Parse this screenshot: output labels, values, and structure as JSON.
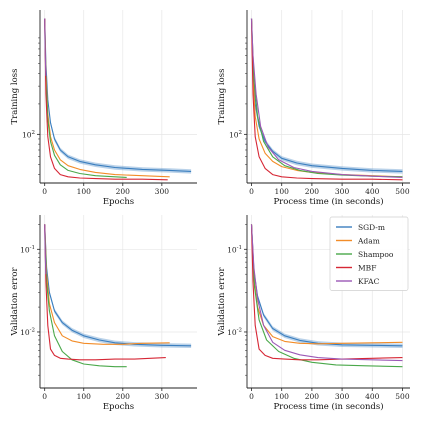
{
  "chart_data": [
    {
      "type": "line",
      "ylabel": "Training loss",
      "xlabel": "Epochs",
      "yscale": "log",
      "ylim": [
        33,
        1700
      ],
      "xlim": [
        -12,
        390
      ],
      "xticks": [
        0,
        100,
        200,
        300
      ],
      "yticks": [
        {
          "v": 100,
          "label": "10^2"
        }
      ],
      "grid": true,
      "legend": false,
      "series": [
        {
          "name": "SGD-m",
          "color": "#3a7ebf",
          "band": true,
          "x": [
            0,
            3,
            8,
            15,
            25,
            40,
            60,
            90,
            130,
            180,
            250,
            320,
            375
          ],
          "y": [
            1400,
            500,
            220,
            130,
            90,
            70,
            60,
            54,
            50,
            47,
            45,
            44,
            43
          ]
        },
        {
          "name": "Adam",
          "color": "#f28c28",
          "band": false,
          "x": [
            0,
            3,
            8,
            15,
            25,
            40,
            60,
            90,
            130,
            180,
            250,
            320
          ],
          "y": [
            1400,
            400,
            160,
            95,
            70,
            56,
            49,
            45,
            42,
            40,
            39,
            38
          ]
        },
        {
          "name": "Shampoo",
          "color": "#4aa84a",
          "band": false,
          "x": [
            0,
            3,
            8,
            15,
            25,
            40,
            60,
            90,
            130,
            180,
            210
          ],
          "y": [
            1400,
            350,
            140,
            85,
            62,
            50,
            44,
            41,
            39,
            38,
            37.5
          ]
        },
        {
          "name": "MBF",
          "color": "#d62735",
          "band": false,
          "x": [
            0,
            3,
            8,
            15,
            25,
            40,
            60,
            90,
            130,
            180,
            250,
            315
          ],
          "y": [
            1400,
            250,
            95,
            60,
            46,
            40,
            38,
            37,
            36.5,
            36,
            36,
            35.5
          ]
        },
        {
          "name": "KFAC",
          "color": "#9b59b6",
          "band": false,
          "x": [
            0,
            1,
            3
          ],
          "y": [
            1400,
            700,
            380
          ]
        }
      ]
    },
    {
      "type": "line",
      "ylabel": "Training loss",
      "xlabel": "Process time (in seconds)",
      "yscale": "log",
      "ylim": [
        33,
        1700
      ],
      "xlim": [
        -15,
        525
      ],
      "xticks": [
        0,
        100,
        200,
        300,
        400,
        500
      ],
      "yticks": [
        {
          "v": 100,
          "label": "10^2"
        }
      ],
      "grid": true,
      "legend": false,
      "series": [
        {
          "name": "SGD-m",
          "color": "#3a7ebf",
          "band": true,
          "x": [
            0,
            5,
            12,
            25,
            45,
            70,
            100,
            150,
            200,
            300,
            400,
            500
          ],
          "y": [
            1400,
            450,
            200,
            120,
            85,
            68,
            58,
            52,
            49,
            46,
            44,
            43
          ]
        },
        {
          "name": "Adam",
          "color": "#f28c28",
          "band": false,
          "x": [
            0,
            5,
            12,
            25,
            45,
            70,
            100,
            150,
            200,
            300,
            400,
            500
          ],
          "y": [
            1400,
            380,
            150,
            90,
            65,
            54,
            48,
            44,
            42,
            40,
            39,
            38
          ]
        },
        {
          "name": "Shampoo",
          "color": "#4aa84a",
          "band": false,
          "x": [
            0,
            8,
            20,
            40,
            70,
            110,
            160,
            220,
            300,
            400,
            500
          ],
          "y": [
            1400,
            350,
            150,
            85,
            60,
            49,
            44,
            41,
            39.5,
            38.5,
            38
          ]
        },
        {
          "name": "MBF",
          "color": "#d62735",
          "band": false,
          "x": [
            0,
            5,
            12,
            25,
            45,
            70,
            100,
            150,
            200,
            300,
            400,
            500
          ],
          "y": [
            1400,
            250,
            95,
            60,
            46,
            40,
            38,
            37,
            36.5,
            36,
            36,
            35.5
          ]
        },
        {
          "name": "KFAC",
          "color": "#9b59b6",
          "band": false,
          "x": [
            0,
            5,
            15,
            30,
            55,
            90,
            140,
            200,
            300,
            400,
            500
          ],
          "y": [
            1400,
            600,
            250,
            120,
            75,
            56,
            47,
            43,
            40,
            38.5,
            37.5
          ]
        }
      ]
    },
    {
      "type": "line",
      "ylabel": "Validation error",
      "xlabel": "Epochs",
      "yscale": "log",
      "ylim": [
        0.0021,
        0.26
      ],
      "xlim": [
        -12,
        390
      ],
      "xticks": [
        0,
        100,
        200,
        300
      ],
      "yticks": [
        {
          "v": 0.1,
          "label": "10^-1"
        },
        {
          "v": 0.01,
          "label": "10^-2"
        }
      ],
      "grid": true,
      "legend": false,
      "series": [
        {
          "name": "SGD-m",
          "color": "#3a7ebf",
          "band": true,
          "x": [
            0,
            5,
            12,
            25,
            45,
            70,
            100,
            140,
            180,
            230,
            300,
            375
          ],
          "y": [
            0.2,
            0.06,
            0.03,
            0.018,
            0.013,
            0.0105,
            0.009,
            0.008,
            0.0074,
            0.0071,
            0.0069,
            0.0068
          ]
        },
        {
          "name": "Adam",
          "color": "#f28c28",
          "band": false,
          "x": [
            0,
            5,
            12,
            25,
            45,
            70,
            100,
            150,
            200,
            250,
            320
          ],
          "y": [
            0.2,
            0.05,
            0.022,
            0.013,
            0.009,
            0.0078,
            0.0073,
            0.0071,
            0.0071,
            0.0073,
            0.0074
          ]
        },
        {
          "name": "Shampoo",
          "color": "#4aa84a",
          "band": false,
          "x": [
            0,
            5,
            12,
            25,
            45,
            70,
            100,
            140,
            180,
            210
          ],
          "y": [
            0.2,
            0.04,
            0.018,
            0.009,
            0.0058,
            0.0046,
            0.0041,
            0.0039,
            0.0038,
            0.0038
          ]
        },
        {
          "name": "MBF",
          "color": "#d62735",
          "band": false,
          "x": [
            0,
            3,
            8,
            15,
            25,
            40,
            60,
            90,
            130,
            180,
            230,
            270,
            310
          ],
          "y": [
            0.2,
            0.04,
            0.012,
            0.0062,
            0.0052,
            0.0048,
            0.0047,
            0.0046,
            0.0046,
            0.0047,
            0.0047,
            0.0048,
            0.0049
          ]
        },
        {
          "name": "KFAC",
          "color": "#9b59b6",
          "band": false,
          "x": [
            0,
            1,
            3
          ],
          "y": [
            0.2,
            0.1,
            0.05
          ]
        }
      ]
    },
    {
      "type": "line",
      "ylabel": "Validation error",
      "xlabel": "Process time (in seconds)",
      "yscale": "log",
      "ylim": [
        0.0021,
        0.26
      ],
      "xlim": [
        -15,
        525
      ],
      "xticks": [
        0,
        100,
        200,
        300,
        400,
        500
      ],
      "yticks": [
        {
          "v": 0.1,
          "label": "10^-1"
        },
        {
          "v": 0.01,
          "label": "10^-2"
        }
      ],
      "grid": true,
      "legend": true,
      "legend_position": "top-right",
      "series": [
        {
          "name": "SGD-m",
          "color": "#3a7ebf",
          "band": true,
          "x": [
            0,
            8,
            20,
            40,
            70,
            110,
            160,
            220,
            300,
            400,
            500
          ],
          "y": [
            0.2,
            0.055,
            0.027,
            0.016,
            0.011,
            0.009,
            0.0079,
            0.0073,
            0.007,
            0.0069,
            0.0068
          ]
        },
        {
          "name": "Adam",
          "color": "#f28c28",
          "band": false,
          "x": [
            0,
            8,
            20,
            40,
            70,
            110,
            160,
            220,
            300,
            400,
            500
          ],
          "y": [
            0.2,
            0.045,
            0.02,
            0.012,
            0.0088,
            0.0077,
            0.0073,
            0.0072,
            0.0073,
            0.0074,
            0.0075
          ]
        },
        {
          "name": "Shampoo",
          "color": "#4aa84a",
          "band": false,
          "x": [
            0,
            10,
            25,
            50,
            90,
            140,
            200,
            280,
            380,
            500
          ],
          "y": [
            0.2,
            0.035,
            0.014,
            0.008,
            0.0058,
            0.0048,
            0.0043,
            0.004,
            0.0039,
            0.0038
          ]
        },
        {
          "name": "MBF",
          "color": "#d62735",
          "band": false,
          "x": [
            0,
            5,
            12,
            25,
            45,
            70,
            110,
            160,
            220,
            300,
            400,
            500
          ],
          "y": [
            0.2,
            0.04,
            0.012,
            0.0062,
            0.0052,
            0.0048,
            0.0047,
            0.0046,
            0.0046,
            0.0047,
            0.0048,
            0.0049
          ]
        },
        {
          "name": "KFAC",
          "color": "#9b59b6",
          "band": false,
          "x": [
            0,
            8,
            20,
            40,
            70,
            110,
            160,
            220,
            300,
            400,
            500
          ],
          "y": [
            0.2,
            0.06,
            0.025,
            0.012,
            0.0075,
            0.006,
            0.0053,
            0.0049,
            0.0047,
            0.0046,
            0.0045
          ]
        }
      ]
    }
  ]
}
